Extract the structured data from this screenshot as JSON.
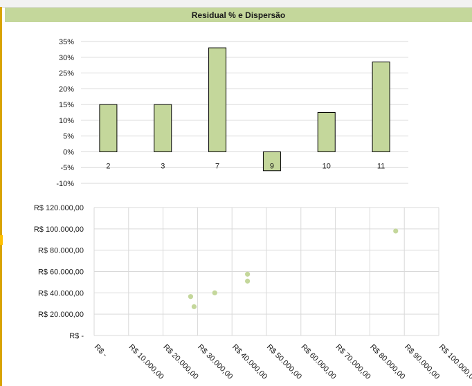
{
  "header": {
    "title": "Residual % e Dispersão"
  },
  "colors": {
    "bar_fill": "#c4d79b",
    "bar_stroke": "#000000",
    "point": "#c4d79b",
    "grid": "#d9d9d9",
    "title_bg": "#c4d79b"
  },
  "chart_data": [
    {
      "type": "bar",
      "title": "Residual % e Dispersão",
      "categories": [
        "2",
        "3",
        "7",
        "9",
        "10",
        "11"
      ],
      "values": [
        0.15,
        0.15,
        0.33,
        -0.06,
        0.125,
        0.285
      ],
      "ylim": [
        -0.1,
        0.35
      ],
      "yticks": [
        0.35,
        0.3,
        0.25,
        0.2,
        0.15,
        0.1,
        0.05,
        0.0,
        -0.05,
        -0.1
      ],
      "ytick_labels": [
        "35%",
        "30%",
        "25%",
        "20%",
        "15%",
        "10%",
        "5%",
        "0%",
        "-5%",
        "-10%"
      ],
      "grid": true
    },
    {
      "type": "scatter",
      "xlim": [
        0,
        100000
      ],
      "ylim": [
        0,
        120000
      ],
      "xticks": [
        0,
        10000,
        20000,
        30000,
        40000,
        50000,
        60000,
        70000,
        80000,
        90000,
        100000
      ],
      "xtick_labels": [
        "R$ -",
        "R$ 10.000,00",
        "R$ 20.000,00",
        "R$ 30.000,00",
        "R$ 40.000,00",
        "R$ 50.000,00",
        "R$ 60.000,00",
        "R$ 70.000,00",
        "R$ 80.000,00",
        "R$ 90.000,00",
        "R$ 100.000,00"
      ],
      "yticks": [
        0,
        20000,
        40000,
        60000,
        80000,
        100000,
        120000
      ],
      "ytick_labels": [
        "R$ -",
        "R$ 20.000,00",
        "R$ 40.000,00",
        "R$ 60.000,00",
        "R$ 80.000,00",
        "R$ 100.000,00",
        "R$ 120.000,00"
      ],
      "points": [
        {
          "x": 28000,
          "y": 36500
        },
        {
          "x": 29000,
          "y": 27000
        },
        {
          "x": 35000,
          "y": 40000
        },
        {
          "x": 44500,
          "y": 57500
        },
        {
          "x": 44500,
          "y": 51000
        },
        {
          "x": 87500,
          "y": 98000
        }
      ],
      "grid": true
    }
  ]
}
